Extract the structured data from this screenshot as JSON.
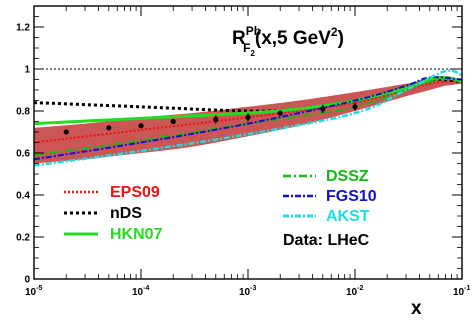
{
  "chart_data": {
    "type": "line",
    "title": {
      "base": "R",
      "sup": "Pb",
      "sub_main": "F",
      "sub_sub": "2",
      "tail_open": "(x,5 GeV",
      "tail_sup": "2",
      "tail_close": ")"
    },
    "xlabel": "x",
    "ylabel": "",
    "x_scale": "log",
    "xlim": [
      1e-05,
      0.1
    ],
    "ylim": [
      0,
      1.3
    ],
    "x_ticks": [
      {
        "value": 1e-05,
        "base": "10",
        "exp": "-5"
      },
      {
        "value": 0.0001,
        "base": "10",
        "exp": "-4"
      },
      {
        "value": 0.001,
        "base": "10",
        "exp": "-3"
      },
      {
        "value": 0.01,
        "base": "10",
        "exp": "-2"
      },
      {
        "value": 0.1,
        "base": "10",
        "exp": "-1"
      }
    ],
    "y_ticks": [
      "0",
      "0.2",
      "0.4",
      "0.6",
      "0.8",
      "1",
      "1.2"
    ],
    "y_tick_values": [
      0,
      0.2,
      0.4,
      0.6,
      0.8,
      1.0,
      1.2
    ],
    "reference_line": 1.0,
    "grid": false,
    "legend_placement": "bottom",
    "eps09_band": {
      "x": [
        1e-05,
        3e-05,
        0.0001,
        0.0003,
        0.001,
        0.003,
        0.01,
        0.03,
        0.05,
        0.07,
        0.1
      ],
      "upper": [
        0.72,
        0.74,
        0.77,
        0.79,
        0.82,
        0.85,
        0.89,
        0.93,
        0.95,
        0.95,
        0.94
      ],
      "lower": [
        0.55,
        0.57,
        0.6,
        0.63,
        0.68,
        0.73,
        0.8,
        0.87,
        0.9,
        0.92,
        0.93
      ]
    },
    "series": [
      {
        "name": "EPS09",
        "color": "#ee1111",
        "dash": "2,2",
        "width": 2,
        "x": [
          1e-05,
          0.0001,
          0.001,
          0.01,
          0.05,
          0.1
        ],
        "y": [
          0.65,
          0.71,
          0.77,
          0.84,
          0.93,
          0.94
        ]
      },
      {
        "name": "nDS",
        "color": "#000000",
        "dash": "3,3",
        "width": 3,
        "x": [
          1e-05,
          0.0001,
          0.001,
          0.003,
          0.01,
          0.03,
          0.05,
          0.1
        ],
        "y": [
          0.84,
          0.82,
          0.8,
          0.81,
          0.85,
          0.91,
          0.95,
          0.94
        ]
      },
      {
        "name": "HKN07",
        "color": "#22dd22",
        "dash": "",
        "width": 3,
        "x": [
          1e-05,
          0.0001,
          0.001,
          0.003,
          0.01,
          0.03,
          0.05,
          0.07,
          0.1
        ],
        "y": [
          0.74,
          0.765,
          0.79,
          0.81,
          0.85,
          0.91,
          0.95,
          0.96,
          0.94
        ]
      },
      {
        "name": "DSSZ",
        "color": "#11bb11",
        "dash": "8,3,2,3",
        "width": 2,
        "x": [
          1e-05,
          0.0001,
          0.001,
          0.01,
          0.05,
          0.1
        ],
        "y": [
          0.59,
          0.66,
          0.74,
          0.82,
          0.94,
          0.95
        ]
      },
      {
        "name": "FGS10",
        "color": "#1111cc",
        "dash": "6,2,2,2",
        "width": 2,
        "x": [
          1e-05,
          0.0001,
          0.001,
          0.01,
          0.03,
          0.05,
          0.1
        ],
        "y": [
          0.57,
          0.65,
          0.74,
          0.85,
          0.92,
          0.96,
          0.95
        ]
      },
      {
        "name": "AKST",
        "color": "#22dddd",
        "dash": "6,2,2,2",
        "width": 2.5,
        "x": [
          1e-05,
          0.0001,
          0.001,
          0.01,
          0.03,
          0.07,
          0.1
        ],
        "y": [
          0.54,
          0.61,
          0.69,
          0.79,
          0.9,
          0.99,
          0.97
        ]
      }
    ],
    "data_points": {
      "name": "Data: LHeC",
      "x": [
        2e-05,
        5e-05,
        0.0001,
        0.0002,
        0.0005,
        0.001,
        0.002,
        0.005,
        0.01
      ],
      "y": [
        0.7,
        0.72,
        0.73,
        0.75,
        0.76,
        0.77,
        0.79,
        0.81,
        0.82
      ],
      "err": [
        0.004,
        0.005,
        0.005,
        0.006,
        0.02,
        0.02,
        0.01,
        0.02,
        0.02
      ]
    },
    "legend": {
      "col1": [
        {
          "label": "EPS09",
          "color": "#ee1111",
          "dash": "2,2",
          "width": 2.5
        },
        {
          "label": "nDS",
          "color": "#000000",
          "dash": "3,3",
          "width": 3
        },
        {
          "label": "HKN07",
          "color": "#22dd22",
          "dash": "",
          "width": 3
        }
      ],
      "col2": [
        {
          "label": "DSSZ",
          "color": "#11bb11",
          "dash": "8,3,2,3",
          "width": 2.5
        },
        {
          "label": "FGS10",
          "color": "#1111cc",
          "dash": "6,2,2,2",
          "width": 2.5
        },
        {
          "label": "AKST",
          "color": "#22dddd",
          "dash": "6,2,2,2",
          "width": 3
        }
      ],
      "data_label": "Data: LHeC"
    },
    "band_color": "#cc5555"
  }
}
